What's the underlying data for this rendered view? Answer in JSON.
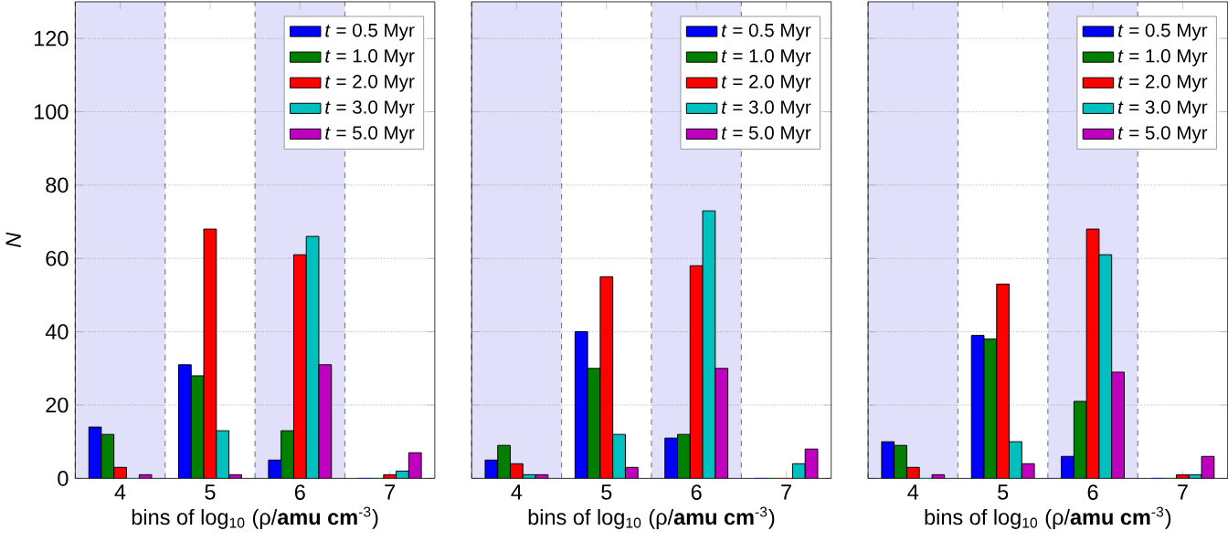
{
  "chart_data": [
    {
      "type": "bar",
      "x": [
        4,
        5,
        6,
        7
      ],
      "xlim": [
        3.5,
        7.5
      ],
      "xticks": [
        4,
        5,
        6,
        7
      ],
      "ylim": [
        0,
        130
      ],
      "yticks": [
        0,
        20,
        40,
        60,
        80,
        100,
        120
      ],
      "xlabel": "bins of log$_{10}$ (ρ/**amu cm**$^{-3}$)",
      "ylabel": "N",
      "grid": "y",
      "legend": "top right",
      "bands": [
        {
          "axis": "x",
          "from": 3.5,
          "to": 4.5,
          "color": "#e0e0fa"
        },
        {
          "axis": "x",
          "from": 5.5,
          "to": 6.5,
          "color": "#e0e0fa"
        }
      ],
      "series": [
        {
          "name": "*t* = 0.5 Myr",
          "color": "#0000ff",
          "values": [
            14,
            31,
            5,
            0
          ]
        },
        {
          "name": "*t* = 1.0 Myr",
          "color": "#007f00",
          "values": [
            12,
            28,
            13,
            0
          ]
        },
        {
          "name": "*t* = 2.0 Myr",
          "color": "#ff0000",
          "values": [
            3,
            68,
            61,
            1
          ]
        },
        {
          "name": "*t* = 3.0 Myr",
          "color": "#00bfbf",
          "values": [
            0,
            13,
            66,
            2
          ]
        },
        {
          "name": "*t* = 5.0 Myr",
          "color": "#bf00bf",
          "values": [
            1,
            1,
            31,
            7
          ]
        }
      ]
    },
    {
      "type": "bar",
      "x": [
        4,
        5,
        6,
        7
      ],
      "xlim": [
        3.5,
        7.5
      ],
      "xticks": [
        4,
        5,
        6,
        7
      ],
      "ylim": [
        0,
        130
      ],
      "yticks": [
        0,
        20,
        40,
        60,
        80,
        100,
        120
      ],
      "tick_labels": "x",
      "xlabel": "bins of log$_{10}$ (ρ/**amu cm**$^{-3}$)",
      "grid": "y",
      "legend": "top right",
      "bands": [
        {
          "axis": "x",
          "from": 3.5,
          "to": 4.5,
          "color": "#e0e0fa"
        },
        {
          "axis": "x",
          "from": 5.5,
          "to": 6.5,
          "color": "#e0e0fa"
        }
      ],
      "series": [
        {
          "name": "*t* = 0.5 Myr",
          "color": "#0000ff",
          "values": [
            5,
            40,
            11,
            0
          ]
        },
        {
          "name": "*t* = 1.0 Myr",
          "color": "#007f00",
          "values": [
            9,
            30,
            12,
            0
          ]
        },
        {
          "name": "*t* = 2.0 Myr",
          "color": "#ff0000",
          "values": [
            4,
            55,
            58,
            0
          ]
        },
        {
          "name": "*t* = 3.0 Myr",
          "color": "#00bfbf",
          "values": [
            1,
            12,
            73,
            4
          ]
        },
        {
          "name": "*t* = 5.0 Myr",
          "color": "#bf00bf",
          "values": [
            1,
            3,
            30,
            8
          ]
        }
      ]
    },
    {
      "type": "bar",
      "x": [
        4,
        5,
        6,
        7
      ],
      "xlim": [
        3.5,
        7.5
      ],
      "xticks": [
        4,
        5,
        6,
        7
      ],
      "ylim": [
        0,
        130
      ],
      "yticks": [
        0,
        20,
        40,
        60,
        80,
        100,
        120
      ],
      "tick_labels": "x",
      "xlabel": "bins of log$_{10}$ (ρ/**amu cm**$^{-3}$)",
      "grid": "y",
      "legend": "top right",
      "bands": [
        {
          "axis": "x",
          "from": 3.5,
          "to": 4.5,
          "color": "#e0e0fa"
        },
        {
          "axis": "x",
          "from": 5.5,
          "to": 6.5,
          "color": "#e0e0fa"
        }
      ],
      "series": [
        {
          "name": "*t* = 0.5 Myr",
          "color": "#0000ff",
          "values": [
            10,
            39,
            6,
            0
          ]
        },
        {
          "name": "*t* = 1.0 Myr",
          "color": "#007f00",
          "values": [
            9,
            38,
            21,
            0
          ]
        },
        {
          "name": "*t* = 2.0 Myr",
          "color": "#ff0000",
          "values": [
            3,
            53,
            68,
            1
          ]
        },
        {
          "name": "*t* = 3.0 Myr",
          "color": "#00bfbf",
          "values": [
            0,
            10,
            61,
            1
          ]
        },
        {
          "name": "*t* = 5.0 Myr",
          "color": "#bf00bf",
          "values": [
            1,
            4,
            29,
            6
          ]
        }
      ]
    }
  ]
}
